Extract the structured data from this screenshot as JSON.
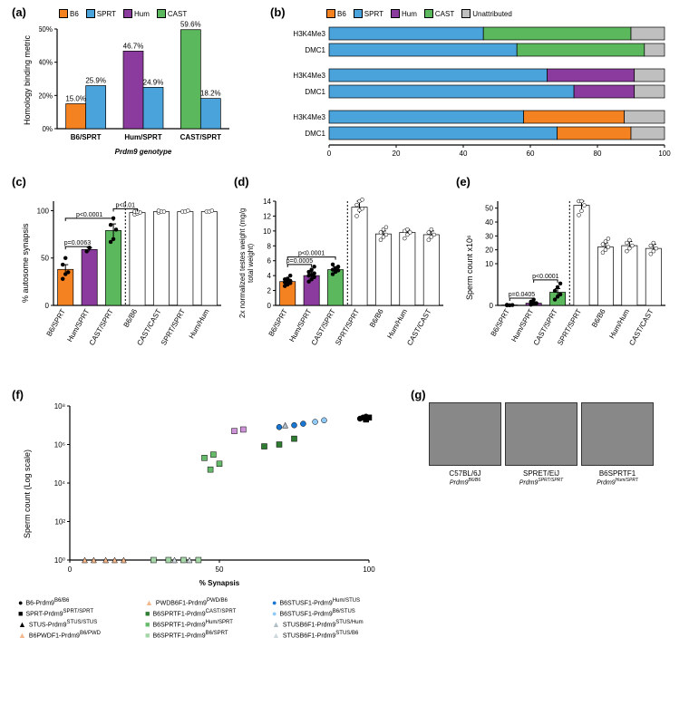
{
  "colors": {
    "B6": "#f58220",
    "SPRT": "#4ba3db",
    "Hum": "#8b3a9e",
    "CAST": "#5cb85c",
    "Unattr": "#bfbfbf",
    "white": "#ffffff",
    "black": "#000000"
  },
  "a": {
    "label": "(a)",
    "ytitle": "Homology\nbinding metric",
    "xtitle": "Prdm9 genotype",
    "legend": [
      {
        "k": "B6",
        "l": "B6"
      },
      {
        "k": "SPRT",
        "l": "SPRT"
      },
      {
        "k": "Hum",
        "l": "Hum"
      },
      {
        "k": "CAST",
        "l": "CAST"
      }
    ],
    "groups": [
      "B6/SPRT",
      "Hum/SPRT",
      "CAST/SPRT"
    ],
    "bars": [
      {
        "g": 0,
        "c": "B6",
        "v": 15.0,
        "t": "15.0%"
      },
      {
        "g": 0,
        "c": "SPRT",
        "v": 25.9,
        "t": "25.9%"
      },
      {
        "g": 1,
        "c": "Hum",
        "v": 46.7,
        "t": "46.7%"
      },
      {
        "g": 1,
        "c": "SPRT",
        "v": 24.9,
        "t": "24.9%"
      },
      {
        "g": 2,
        "c": "CAST",
        "v": 59.6,
        "t": "59.6%"
      },
      {
        "g": 2,
        "c": "SPRT",
        "v": 18.2,
        "t": "18.2%"
      }
    ],
    "ylim": [
      0,
      60
    ],
    "yticks": [
      0,
      20,
      40,
      60
    ]
  },
  "b": {
    "label": "(b)",
    "xtitle": "Attribution of hotspots (%)",
    "legend": [
      {
        "k": "B6",
        "l": "B6"
      },
      {
        "k": "SPRT",
        "l": "SPRT"
      },
      {
        "k": "Hum",
        "l": "Hum"
      },
      {
        "k": "CAST",
        "l": "CAST"
      },
      {
        "k": "Unattr",
        "l": "Unattributed"
      }
    ],
    "rows": [
      {
        "l": "H3K4Me3",
        "seg": [
          {
            "c": "SPRT",
            "v": 46
          },
          {
            "c": "CAST",
            "v": 44
          },
          {
            "c": "Unattr",
            "v": 10
          }
        ]
      },
      {
        "l": "DMC1",
        "seg": [
          {
            "c": "SPRT",
            "v": 56
          },
          {
            "c": "CAST",
            "v": 38
          },
          {
            "c": "Unattr",
            "v": 6
          }
        ]
      },
      {
        "l": "H3K4Me3",
        "seg": [
          {
            "c": "SPRT",
            "v": 65
          },
          {
            "c": "Hum",
            "v": 26
          },
          {
            "c": "Unattr",
            "v": 9
          }
        ]
      },
      {
        "l": "DMC1",
        "seg": [
          {
            "c": "SPRT",
            "v": 73
          },
          {
            "c": "Hum",
            "v": 18
          },
          {
            "c": "Unattr",
            "v": 9
          }
        ]
      },
      {
        "l": "H3K4Me3",
        "seg": [
          {
            "c": "SPRT",
            "v": 58
          },
          {
            "c": "B6",
            "v": 30
          },
          {
            "c": "Unattr",
            "v": 12
          }
        ]
      },
      {
        "l": "DMC1",
        "seg": [
          {
            "c": "SPRT",
            "v": 68
          },
          {
            "c": "B6",
            "v": 22
          },
          {
            "c": "Unattr",
            "v": 10
          }
        ]
      }
    ],
    "xlim": [
      0,
      100
    ],
    "xticks": [
      0,
      20,
      40,
      60,
      80,
      100
    ]
  },
  "c": {
    "label": "(c)",
    "ytitle": "% autosome synapsis",
    "cats": [
      "B6/SPRT",
      "Hum/SPRT",
      "CAST/SPRT",
      "B6/B6",
      "CAST/CAST",
      "SPRT/SPRT",
      "Hum/Hum"
    ],
    "cols": [
      "B6",
      "Hum",
      "CAST",
      "white",
      "white",
      "white",
      "white"
    ],
    "means": [
      38,
      59,
      79,
      98,
      99,
      99,
      99
    ],
    "err": [
      5,
      2,
      7,
      1,
      1,
      1,
      1
    ],
    "pts": [
      [
        28,
        33,
        35,
        43,
        50
      ],
      [
        57,
        61
      ],
      [
        67,
        70,
        80,
        85,
        92
      ],
      [
        96,
        97,
        98,
        99,
        99
      ],
      [
        98,
        99,
        99,
        100
      ],
      [
        99,
        99,
        100
      ],
      [
        99,
        99,
        100
      ]
    ],
    "pvals": [
      {
        "a": 0,
        "b": 1,
        "t": "p=0.0063",
        "y": 62
      },
      {
        "a": 0,
        "b": 2,
        "t": "p<0.0001",
        "y": 92
      },
      {
        "a": 2,
        "b": 3,
        "t": "p<0.01",
        "y": 102
      }
    ],
    "ylim": [
      0,
      110
    ],
    "yticks": [
      0,
      50,
      100
    ],
    "dashed_after": 2
  },
  "d": {
    "label": "(d)",
    "ytitle": "2x normalized testes weight\n(mg/g total weight)",
    "cats": [
      "B6/SPRT",
      "Hum/SPRT",
      "CAST/SPRT",
      "SPRT/SPRT",
      "B6/B6",
      "Hum/Hum",
      "CAST/CAST"
    ],
    "cols": [
      "B6",
      "Hum",
      "CAST",
      "white",
      "white",
      "white",
      "white"
    ],
    "means": [
      3.2,
      4.0,
      4.8,
      13.2,
      9.6,
      9.8,
      9.5
    ],
    "err": [
      0.3,
      0.5,
      0.4,
      0.8,
      0.4,
      0.4,
      0.5
    ],
    "pts": [
      [
        2.6,
        2.8,
        3.0,
        3.1,
        3.2,
        3.3,
        3.5,
        3.6,
        4.0
      ],
      [
        3.2,
        3.5,
        3.8,
        4.0,
        4.1,
        4.3,
        4.5,
        4.8,
        5.2
      ],
      [
        4.2,
        4.5,
        4.7,
        4.8,
        5.0,
        5.2,
        5.5
      ],
      [
        12.0,
        12.8,
        13.0,
        13.5,
        14.0,
        14.2
      ],
      [
        8.8,
        9.2,
        9.5,
        9.8,
        10.2,
        10.5
      ],
      [
        9.0,
        9.5,
        9.8,
        10.0,
        10.2
      ],
      [
        8.8,
        9.2,
        9.5,
        9.8,
        10.2
      ]
    ],
    "pvals": [
      {
        "a": 0,
        "b": 1,
        "t": "p=0.0005",
        "y": 5.5
      },
      {
        "a": 0,
        "b": 2,
        "t": "p<0.0001",
        "y": 6.5
      }
    ],
    "ylim": [
      0,
      14
    ],
    "yticks": [
      0,
      2,
      4,
      6,
      8,
      10,
      12,
      14
    ],
    "dashed_after": 2
  },
  "e": {
    "label": "(e)",
    "ytitle": "Sperm count x10⁶",
    "cats": [
      "B6/SPRT",
      "Hum/SPRT",
      "CAST/SPRT",
      "SPRT/SPRT",
      "B6/B6",
      "Hum/Hum",
      "CAST/CAST"
    ],
    "cols": [
      "B6",
      "Hum",
      "CAST",
      "white",
      "white",
      "white",
      "white"
    ],
    "means": [
      0.05,
      0.3,
      1.8,
      52,
      22,
      23,
      21
    ],
    "err": [
      0.02,
      0.2,
      0.5,
      4,
      3,
      3,
      3
    ],
    "pts": [
      [
        0.01,
        0.02,
        0.05,
        0.08
      ],
      [
        0.1,
        0.2,
        0.3,
        0.5,
        0.8
      ],
      [
        0.8,
        1.2,
        1.5,
        2.0,
        2.5,
        3.0
      ],
      [
        45,
        48,
        52,
        55,
        58
      ],
      [
        18,
        20,
        22,
        24,
        26,
        28
      ],
      [
        19,
        21,
        23,
        25,
        27
      ],
      [
        17,
        19,
        21,
        23,
        25
      ]
    ],
    "pvals": [
      {
        "a": 0,
        "b": 1,
        "t": "p=0.0405",
        "y": 1.0
      },
      {
        "a": 1,
        "b": 2,
        "t": "p<0.0001",
        "y": 3.5
      }
    ],
    "yticks": [
      0,
      10,
      20,
      30,
      40,
      50
    ],
    "break_at": 5,
    "low_max": 5,
    "high_min": 10,
    "high_max": 55,
    "dashed_after": 2
  },
  "f": {
    "label": "(f)",
    "ytitle": "Sperm count (Log scale)",
    "xtitle": "% Synapsis",
    "xlim": [
      0,
      100
    ],
    "ylim": [
      1,
      100000000.0
    ],
    "yticks": [
      1,
      100,
      10000,
      1000000,
      100000000
    ],
    "yticklabels": [
      "10⁰",
      "10²",
      "10⁴",
      "10⁶",
      "10⁸"
    ],
    "series": [
      {
        "l": "B6-Prdm9^B6/B6",
        "m": "circle",
        "c": "#000",
        "pts": [
          [
            98,
            25000000.0
          ],
          [
            99,
            28000000.0
          ],
          [
            97,
            22000000.0
          ]
        ]
      },
      {
        "l": "SPRT-Prdm9^SPRT/SPRT",
        "m": "square",
        "c": "#000",
        "pts": [
          [
            99,
            22000000.0
          ],
          [
            99,
            20000000.0
          ],
          [
            100,
            25000000.0
          ]
        ]
      },
      {
        "l": "STUS-Prdm9^STUS/STUS",
        "m": "triangle",
        "c": "#000",
        "pts": [
          [
            99,
            20000000.0
          ]
        ]
      },
      {
        "l": "B6PWDF1-Prdm9^B6/PWD",
        "m": "triangle",
        "c": "#f5b88c",
        "pts": [
          [
            5,
            1
          ],
          [
            8,
            1
          ],
          [
            12,
            1
          ]
        ]
      },
      {
        "l": "PWDB6F1-Prdm9^PWD/B6",
        "m": "triangle",
        "c": "#f5b88c",
        "pts": [
          [
            15,
            1
          ],
          [
            18,
            1
          ]
        ]
      },
      {
        "l": "B6SPRTF1-Prdm9^CAST/SPRT",
        "m": "square",
        "c": "#2e7d32",
        "pts": [
          [
            65,
            800000.0
          ],
          [
            70,
            1000000.0
          ],
          [
            75,
            2000000.0
          ]
        ]
      },
      {
        "l": "B6SPRTF1-Prdm9^Hum/SPRT",
        "m": "square",
        "c": "#66bb6a",
        "pts": [
          [
            45,
            200000.0
          ],
          [
            48,
            300000.0
          ],
          [
            50,
            100000.0
          ],
          [
            47,
            50000.0
          ]
        ]
      },
      {
        "l": "B6SPRTF1-Prdm9^B6/SPRT",
        "m": "square",
        "c": "#a5d6a7",
        "pts": [
          [
            28,
            1
          ],
          [
            33,
            1
          ],
          [
            38,
            1
          ],
          [
            43,
            1
          ]
        ]
      },
      {
        "l": "B6STUSF1-Prdm9^Hum/STUS",
        "m": "circle",
        "c": "#1976d2",
        "pts": [
          [
            70,
            8000000.0
          ],
          [
            75,
            10000000.0
          ],
          [
            78,
            12000000.0
          ]
        ]
      },
      {
        "l": "B6STUSF1-Prdm9^B6/STUS",
        "m": "circle",
        "c": "#90caf9",
        "pts": [
          [
            82,
            15000000.0
          ],
          [
            85,
            18000000.0
          ]
        ]
      },
      {
        "l": "STUSB6F1-Prdm9^STUS/Hum",
        "m": "triangle",
        "c": "#b0bec5",
        "pts": [
          [
            72,
            10000000.0
          ]
        ]
      },
      {
        "l": "STUSB6F1-Prdm9^STUS/B6",
        "m": "triangle",
        "c": "#cfd8dc",
        "pts": [
          [
            35,
            1
          ],
          [
            40,
            1
          ]
        ]
      },
      {
        "l": "",
        "m": "square",
        "c": "#ce93d8",
        "pts": [
          [
            55,
            5000000.0
          ],
          [
            58,
            6000000.0
          ]
        ]
      }
    ]
  },
  "g": {
    "label": "(g)",
    "imgs": [
      {
        "t1": "C57BL/6J",
        "t2": "Prdm9^B6/B6"
      },
      {
        "t1": "SPRET/EiJ",
        "t2": "Prdm9^SPRT/SPRT"
      },
      {
        "t1": "B6SPRTF1",
        "t2": "Prdm9^Hum/SPRT"
      }
    ]
  }
}
